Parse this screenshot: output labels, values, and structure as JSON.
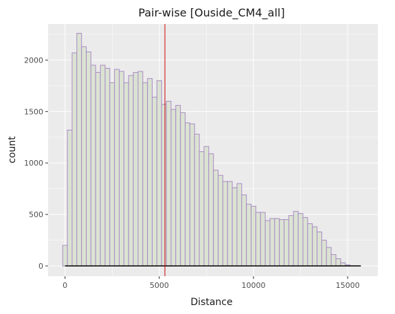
{
  "chart_data": {
    "type": "histogram",
    "title": "Pair-wise [Ouside_CM4_all]",
    "xlabel": "Distance",
    "ylabel": "count",
    "xlim": [
      -900,
      16600
    ],
    "ylim": [
      -100,
      2350
    ],
    "x_ticks": [
      0,
      5000,
      10000,
      15000
    ],
    "y_ticks": [
      0,
      500,
      1000,
      1500,
      2000
    ],
    "bin_width": 250,
    "first_bin_start": -125,
    "counts": [
      200,
      1320,
      2070,
      2260,
      2130,
      2080,
      1950,
      1880,
      1950,
      1920,
      1780,
      1910,
      1890,
      1780,
      1850,
      1880,
      1890,
      1780,
      1820,
      1640,
      1800,
      1570,
      1600,
      1520,
      1560,
      1490,
      1390,
      1380,
      1280,
      1110,
      1160,
      1090,
      930,
      880,
      820,
      820,
      760,
      800,
      690,
      600,
      580,
      520,
      520,
      440,
      460,
      460,
      450,
      450,
      490,
      530,
      510,
      470,
      410,
      380,
      330,
      250,
      180,
      110,
      70,
      30,
      10
    ],
    "vline": {
      "x": 5300,
      "color": "#cc0000"
    },
    "baseline": {
      "from": 0,
      "to": 15700,
      "color": "#000000"
    },
    "colors": {
      "panel": "#ebebeb",
      "grid_major": "#ffffff",
      "bar_fill": "#dbe3d3",
      "bar_stroke": "#a98ac4"
    },
    "grid": true,
    "legend": "none"
  }
}
